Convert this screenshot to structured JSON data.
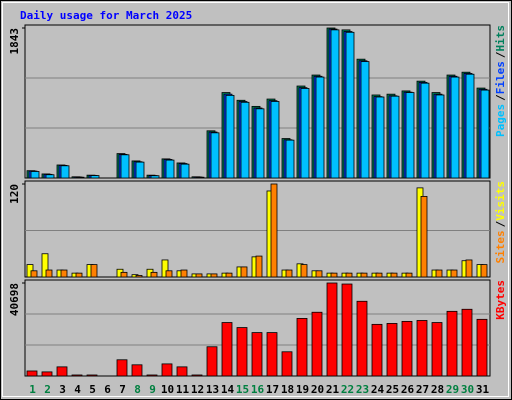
{
  "title": "Daily usage for March 2025",
  "legend_separator": "/",
  "categories": [
    "1",
    "2",
    "3",
    "4",
    "5",
    "6",
    "7",
    "8",
    "9",
    "10",
    "11",
    "12",
    "13",
    "14",
    "15",
    "16",
    "17",
    "18",
    "19",
    "20",
    "21",
    "22",
    "23",
    "24",
    "25",
    "26",
    "27",
    "28",
    "29",
    "30",
    "31"
  ],
  "category_colors": [
    "#008040",
    "#008040",
    "#000000",
    "#000000",
    "#000000",
    "#000000",
    "#000000",
    "#008040",
    "#008040",
    "#000000",
    "#000000",
    "#000000",
    "#000000",
    "#000000",
    "#008040",
    "#008040",
    "#000000",
    "#000000",
    "#000000",
    "#000000",
    "#000000",
    "#008040",
    "#008040",
    "#000000",
    "#000000",
    "#000000",
    "#000000",
    "#000000",
    "#008040",
    "#008040",
    "#000000"
  ],
  "chart_data": [
    {
      "type": "bar",
      "ylim": [
        0,
        1843
      ],
      "yticks": [
        1843
      ],
      "grid_divisions": 3,
      "series": [
        {
          "name": "Hits",
          "color": "#00805c",
          "values": [
            90,
            50,
            160,
            15,
            35,
            0,
            300,
            210,
            35,
            235,
            185,
            15,
            580,
            1050,
            955,
            880,
            970,
            485,
            1130,
            1265,
            1843,
            1820,
            1460,
            1020,
            1030,
            1070,
            1190,
            1050,
            1265,
            1300,
            1105
          ]
        },
        {
          "name": "Files",
          "color": "#0040ff",
          "values": [
            85,
            45,
            155,
            12,
            32,
            0,
            290,
            200,
            30,
            228,
            178,
            12,
            565,
            1030,
            940,
            860,
            950,
            470,
            1110,
            1250,
            1830,
            1800,
            1440,
            1000,
            1010,
            1055,
            1175,
            1030,
            1250,
            1285,
            1090
          ]
        },
        {
          "name": "Pages",
          "color": "#00c0ff",
          "values": [
            80,
            40,
            150,
            10,
            30,
            0,
            285,
            195,
            28,
            220,
            170,
            10,
            555,
            1015,
            930,
            850,
            940,
            465,
            1100,
            1240,
            1820,
            1790,
            1430,
            995,
            1005,
            1050,
            1165,
            1020,
            1240,
            1275,
            1080
          ]
        }
      ]
    },
    {
      "type": "bar",
      "ylim": [
        0,
        120
      ],
      "yticks": [
        120
      ],
      "grid_divisions": 2,
      "series": [
        {
          "name": "Visits",
          "color": "#ffff00",
          "values": [
            16,
            30,
            9,
            5,
            16,
            0,
            10,
            3,
            10,
            22,
            8,
            4,
            4,
            5,
            13,
            26,
            111,
            9,
            17,
            8,
            5,
            5,
            5,
            5,
            5,
            5,
            115,
            9,
            9,
            21,
            16
          ]
        },
        {
          "name": "Sites",
          "color": "#ff8000",
          "values": [
            8,
            9,
            9,
            5,
            16,
            0,
            6,
            2,
            6,
            8,
            9,
            4,
            4,
            5,
            13,
            27,
            120,
            9,
            16,
            8,
            5,
            5,
            5,
            5,
            5,
            5,
            104,
            9,
            9,
            22,
            16
          ]
        }
      ]
    },
    {
      "type": "bar",
      "ylim": [
        0,
        40698
      ],
      "yticks": [
        40698
      ],
      "grid_divisions": 3,
      "series": [
        {
          "name": "KBytes",
          "color": "#ff0000",
          "values": [
            2200,
            1800,
            4000,
            450,
            450,
            0,
            7100,
            4900,
            450,
            5300,
            4000,
            450,
            12800,
            23400,
            21200,
            19000,
            19000,
            10600,
            25200,
            27900,
            40698,
            40250,
            32700,
            22600,
            23000,
            23900,
            24300,
            23400,
            28300,
            29200,
            24800
          ]
        }
      ]
    }
  ]
}
